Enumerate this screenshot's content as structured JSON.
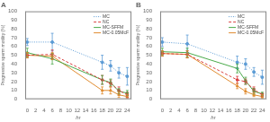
{
  "chart_data": [
    {
      "type": "line",
      "title": "A",
      "x": [
        0,
        6,
        18,
        20,
        22,
        24
      ],
      "xlabel": "hr",
      "ylabel": "Progressive sperm motility (%)",
      "xlim": [
        -0.5,
        25
      ],
      "xticks": [
        0,
        2,
        4,
        6,
        8,
        10,
        12,
        14,
        16,
        18,
        20,
        22,
        24
      ],
      "ylim": [
        0,
        100
      ],
      "yticks": [
        0,
        10,
        20,
        30,
        40,
        50,
        60,
        70,
        80,
        90,
        100
      ],
      "grid": false,
      "legend": "upper right",
      "series": [
        {
          "name": "MC",
          "color": "#5b9bd5",
          "marker": "circle",
          "line_style": "dotted",
          "values": [
            65,
            65,
            42,
            38,
            30,
            26
          ],
          "errors": [
            4,
            10,
            8,
            6,
            6,
            10
          ]
        },
        {
          "name": "NC",
          "color": "#d94040",
          "marker": "square",
          "line_style": "dashed",
          "values": [
            50,
            51,
            22,
            18,
            10,
            5
          ],
          "errors": [
            3,
            5,
            5,
            4,
            4,
            3
          ]
        },
        {
          "name": "MC-SFFM",
          "color": "#4aaa4a",
          "marker": "diamond",
          "line_style": "solid",
          "values": [
            53,
            46,
            22,
            19,
            9,
            7
          ],
          "errors": [
            5,
            6,
            5,
            4,
            3,
            3
          ]
        },
        {
          "name": "MC-0.05McF",
          "color": "#e08c30",
          "marker": "triangle",
          "line_style": "solid",
          "values": [
            50,
            49,
            10,
            10,
            5,
            3
          ],
          "errors": [
            3,
            4,
            4,
            4,
            3,
            2
          ]
        }
      ]
    },
    {
      "type": "line",
      "title": "B",
      "x": [
        0,
        6,
        18,
        20,
        22,
        24
      ],
      "xlabel": "hr",
      "ylabel": "Progressive sperm motility (%)",
      "xlim": [
        -0.5,
        25
      ],
      "xticks": [
        0,
        2,
        4,
        6,
        8,
        10,
        12,
        14,
        16,
        18,
        20,
        22,
        24
      ],
      "ylim": [
        0,
        100
      ],
      "yticks": [
        0,
        10,
        20,
        30,
        40,
        50,
        60,
        70,
        80,
        90,
        100
      ],
      "grid": false,
      "legend": "upper right",
      "series": [
        {
          "name": "MC",
          "color": "#5b9bd5",
          "marker": "circle",
          "line_style": "dotted",
          "values": [
            65,
            63,
            42,
            40,
            31,
            25
          ],
          "errors": [
            5,
            10,
            7,
            6,
            5,
            8
          ]
        },
        {
          "name": "NC",
          "color": "#d94040",
          "marker": "square",
          "line_style": "dashed",
          "values": [
            52,
            51,
            22,
            20,
            11,
            5
          ],
          "errors": [
            3,
            4,
            4,
            3,
            3,
            2
          ]
        },
        {
          "name": "MC-SFFM",
          "color": "#4aaa4a",
          "marker": "diamond",
          "line_style": "solid",
          "values": [
            54,
            53,
            35,
            21,
            9,
            6
          ],
          "errors": [
            4,
            5,
            5,
            4,
            3,
            2
          ]
        },
        {
          "name": "MC-0.05McF",
          "color": "#e08c30",
          "marker": "triangle",
          "line_style": "solid",
          "values": [
            52,
            51,
            15,
            9,
            5,
            3
          ],
          "errors": [
            3,
            4,
            3,
            3,
            2,
            2
          ]
        }
      ]
    }
  ]
}
